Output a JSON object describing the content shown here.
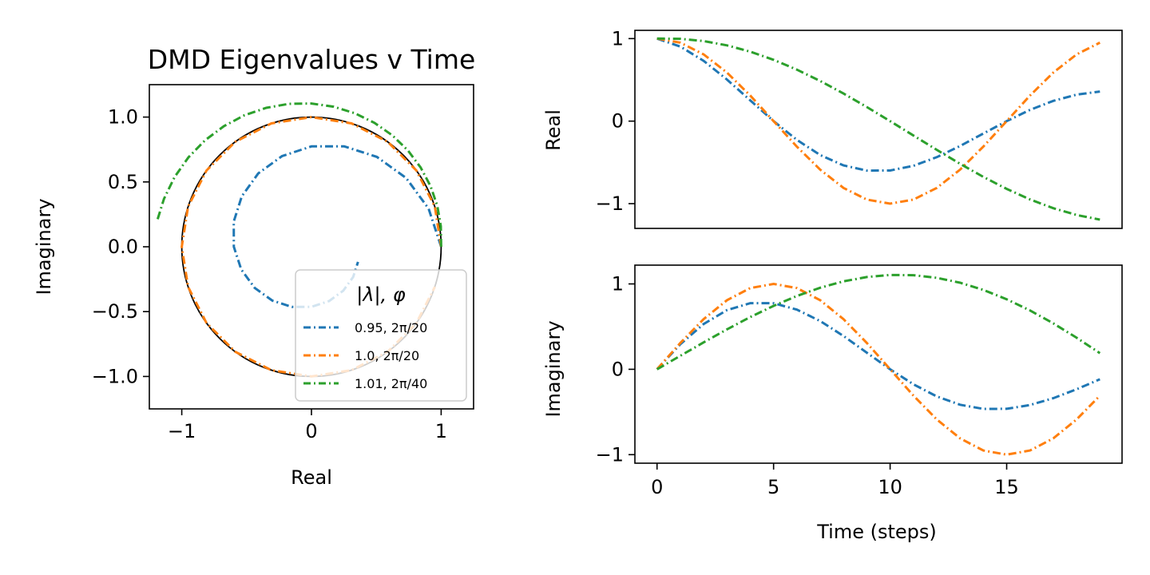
{
  "chart_data": [
    {
      "type": "line",
      "panel": "eigenvalues",
      "title": "DMD Eigenvalues v Time",
      "xlabel": "Real",
      "ylabel": "Imaginary",
      "xlim": [
        -1.25,
        1.25
      ],
      "ylim": [
        -1.25,
        1.25
      ],
      "xticks": [
        -1,
        0,
        1
      ],
      "xtick_labels": [
        "−1",
        "0",
        "1"
      ],
      "yticks": [
        -1.0,
        -0.5,
        0.0,
        0.5,
        1.0
      ],
      "ytick_labels": [
        "−1.0",
        "−0.5",
        "0.0",
        "0.5",
        "1.0"
      ],
      "grid": false,
      "legend_position": "bottom-right",
      "legend_title": "|λ|, φ",
      "unit_circle": {
        "color": "#000000"
      },
      "series": [
        {
          "name": "0.95, 2π/20",
          "color": "#1f77b4",
          "magnitude": 0.95,
          "step_angle_divisor": 20
        },
        {
          "name": "1.0, 2π/20",
          "color": "#ff7f0e",
          "magnitude": 1.0,
          "step_angle_divisor": 20
        },
        {
          "name": "1.01, 2π/40",
          "color": "#2ca02c",
          "magnitude": 1.01,
          "step_angle_divisor": 40
        }
      ]
    },
    {
      "type": "line",
      "panel": "real-vs-time",
      "ylabel": "Real",
      "xlim": [
        -0.95,
        19.95
      ],
      "ylim": [
        -1.3,
        1.1
      ],
      "yticks": [
        -1,
        0,
        1
      ],
      "ytick_labels": [
        "−1",
        "0",
        "1"
      ],
      "grid": false,
      "component": "real",
      "steps": 20
    },
    {
      "type": "line",
      "panel": "imaginary-vs-time",
      "xlabel": "Time (steps)",
      "ylabel": "Imaginary",
      "xlim": [
        -0.95,
        19.95
      ],
      "ylim": [
        -1.1,
        1.22
      ],
      "xticks": [
        0,
        5,
        10,
        15
      ],
      "xtick_labels": [
        "0",
        "5",
        "10",
        "15"
      ],
      "yticks": [
        -1,
        0,
        1
      ],
      "ytick_labels": [
        "−1",
        "0",
        "1"
      ],
      "grid": false,
      "component": "imag",
      "steps": 20
    }
  ]
}
